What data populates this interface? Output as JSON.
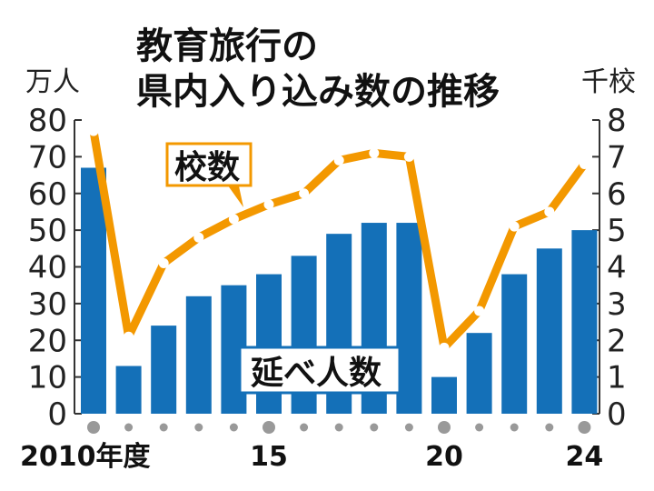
{
  "chart_data": {
    "type": "bar+line",
    "title_lines": [
      "教育旅行の",
      "県内入り込み数の推移"
    ],
    "left_unit": "万人",
    "right_unit": "千校",
    "categories": [
      "2010",
      "2011",
      "2012",
      "2013",
      "2014",
      "2015",
      "2016",
      "2017",
      "2018",
      "2019",
      "2020",
      "2021",
      "2022",
      "2023",
      "2024"
    ],
    "x_tick_labels": [
      {
        "index": 0,
        "label": "2010年度"
      },
      {
        "index": 5,
        "label": "15"
      },
      {
        "index": 10,
        "label": "20"
      },
      {
        "index": 14,
        "label": "24"
      }
    ],
    "bars": {
      "name": "延べ人数",
      "color": "#1470b8",
      "values": [
        67,
        13,
        24,
        32,
        35,
        38,
        43,
        49,
        52,
        52,
        10,
        22,
        38,
        45,
        50
      ]
    },
    "line": {
      "name": "校数",
      "color": "#f39800",
      "values": [
        7.7,
        2.1,
        4.1,
        4.8,
        5.3,
        5.7,
        6.0,
        6.9,
        7.1,
        7.0,
        1.8,
        2.8,
        5.1,
        5.5,
        6.8
      ]
    },
    "ylim_left": [
      0,
      80
    ],
    "yticks_left": [
      0,
      10,
      20,
      30,
      40,
      50,
      60,
      70,
      80
    ],
    "ylim_right": [
      0,
      8
    ],
    "yticks_right": [
      0,
      1,
      2,
      3,
      4,
      5,
      6,
      7,
      8
    ]
  }
}
